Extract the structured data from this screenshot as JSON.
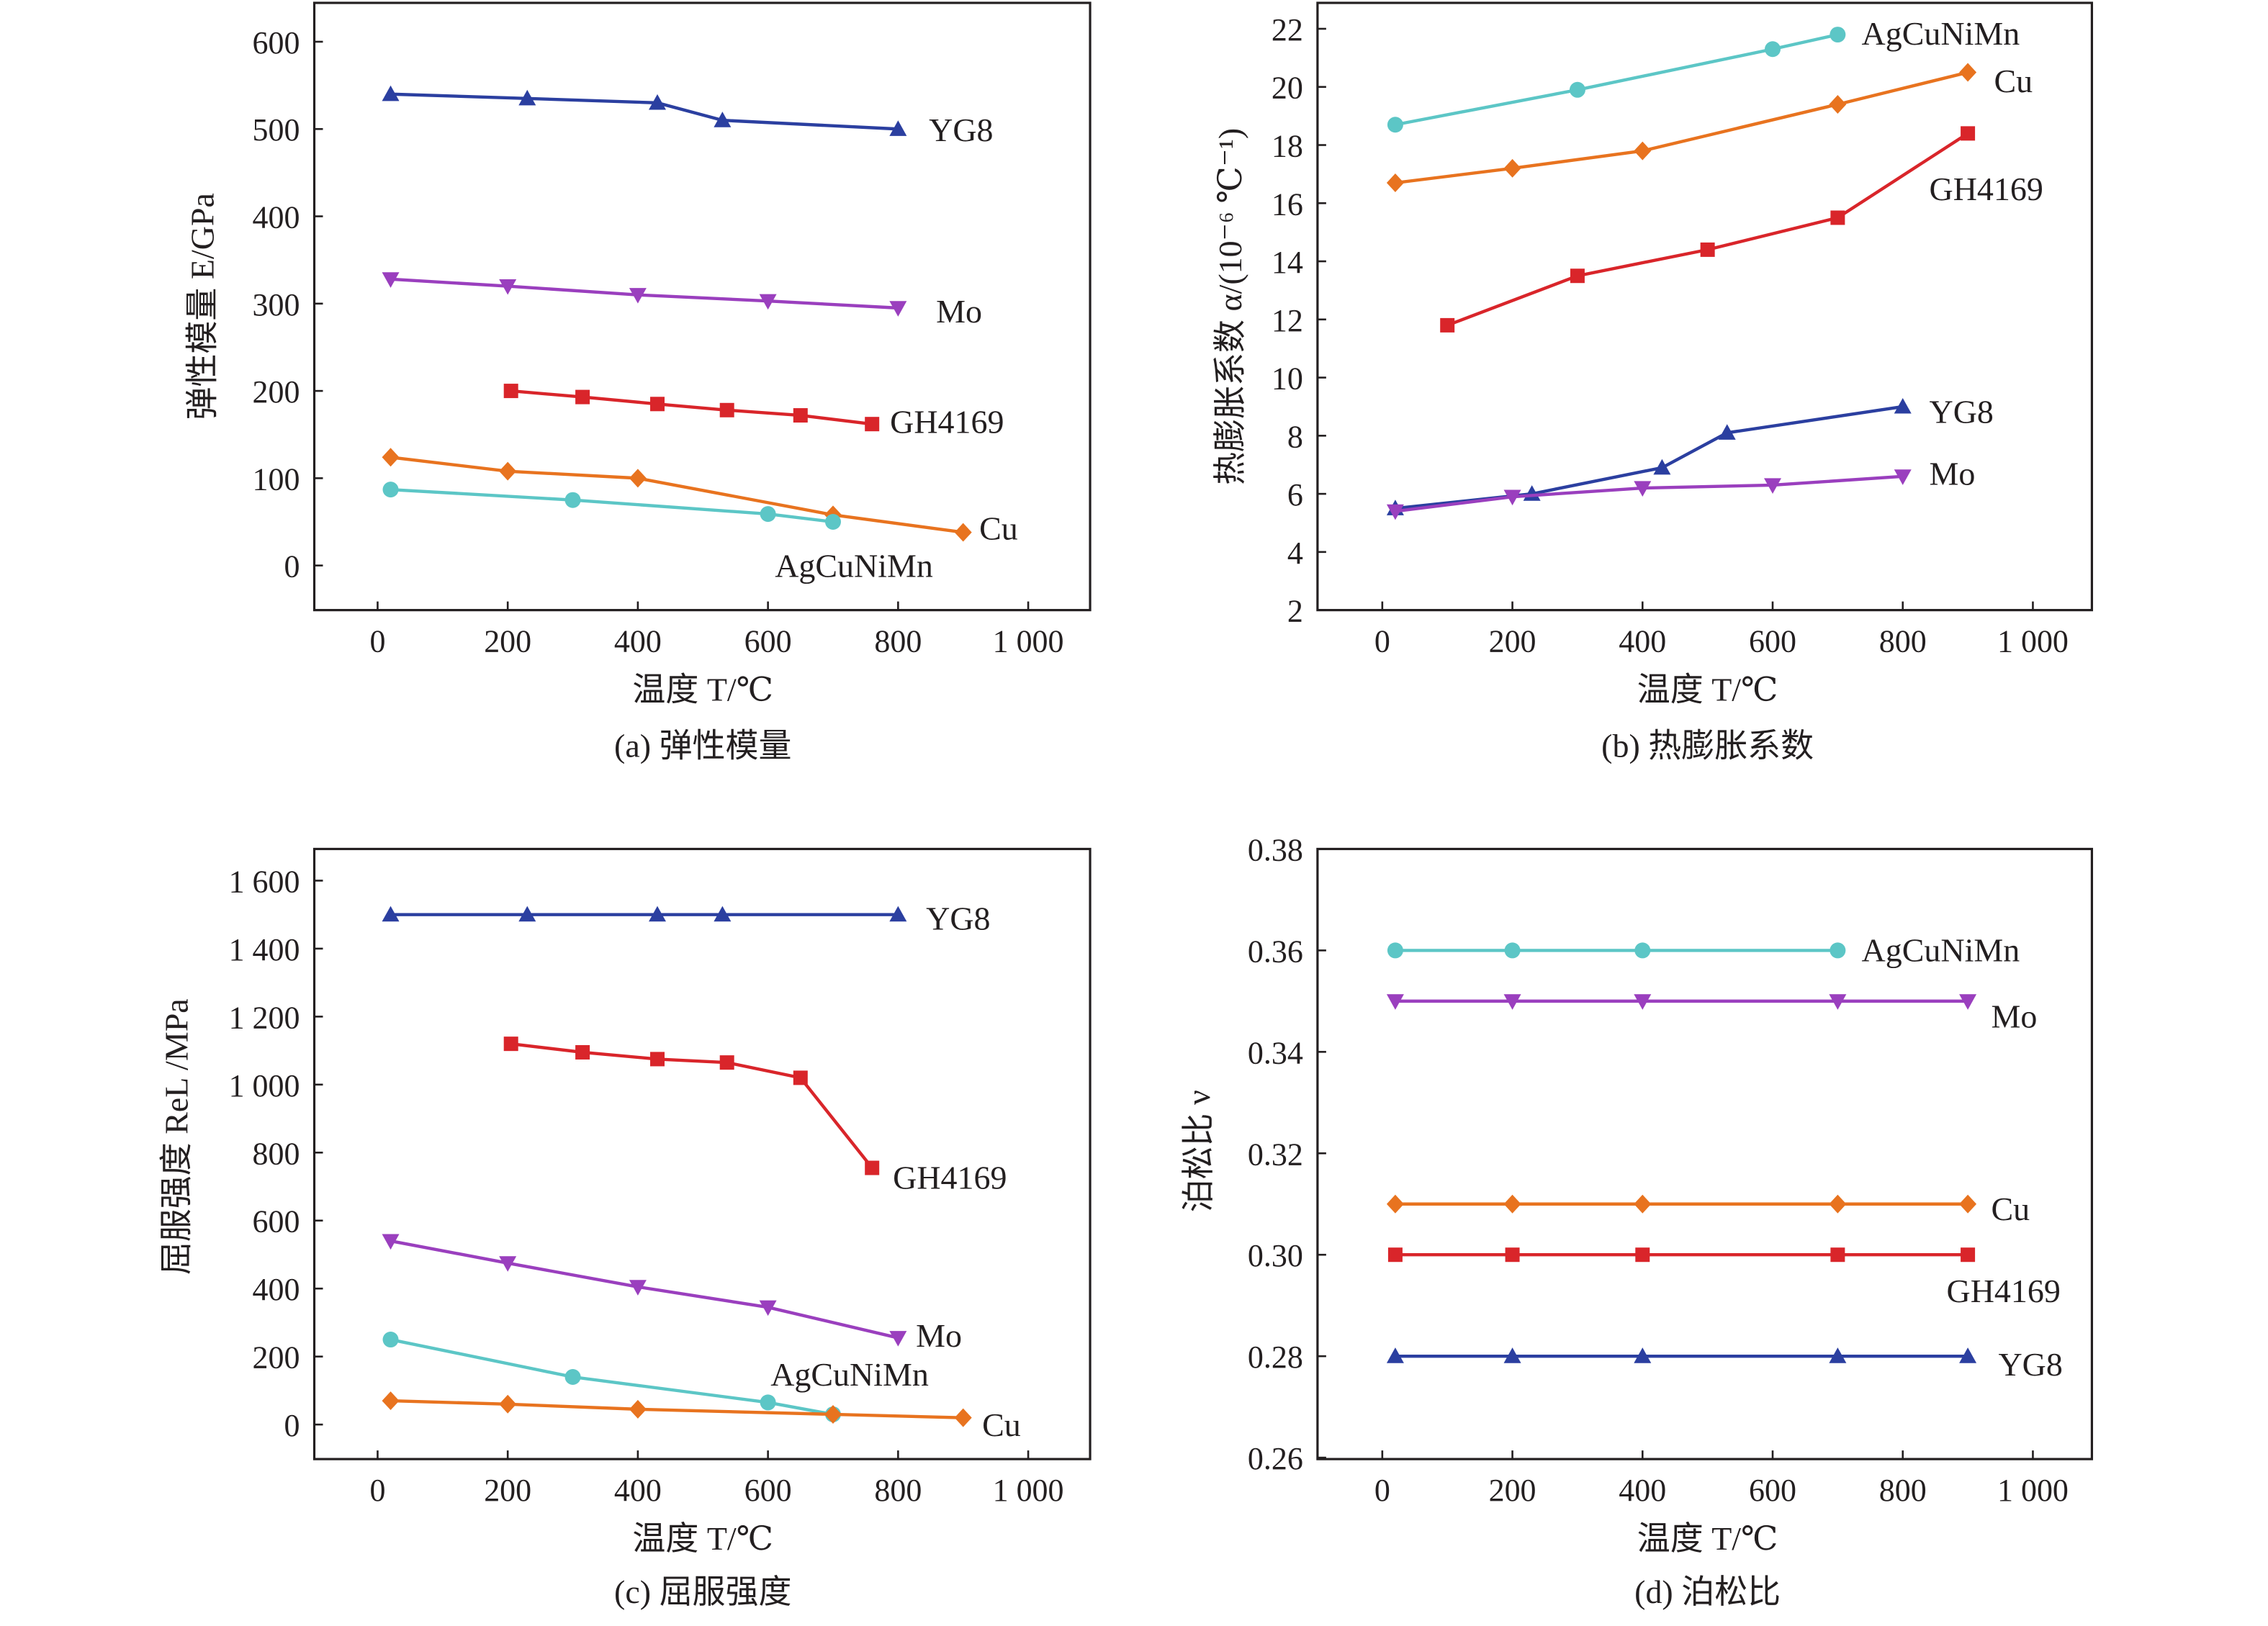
{
  "colors": {
    "YG8": "#2b3fa0",
    "Mo": "#9a3fbe",
    "GH4169": "#d9252a",
    "Cu": "#e8731f",
    "AgCuNiMn": "#5cc6c6"
  },
  "markers": {
    "YG8": "triangle-up",
    "Mo": "triangle-down",
    "GH4169": "square",
    "Cu": "diamond",
    "AgCuNiMn": "circle"
  },
  "chart_data": [
    {
      "type": "line",
      "caption": "(a) 弹性模量",
      "xlabel": "温度 T/℃",
      "ylabel": "弹性模量 E/GPa",
      "xlim": [
        -100,
        1100
      ],
      "ylim": [
        -50,
        650
      ],
      "xticks": [
        0,
        200,
        400,
        600,
        800,
        1000
      ],
      "xtick_labels": [
        "0",
        "200",
        "400",
        "600",
        "800",
        "1 000"
      ],
      "yticks": [
        0,
        100,
        200,
        300,
        400,
        500,
        600
      ],
      "ytick_labels": [
        "0",
        "100",
        "200",
        "300",
        "400",
        "500",
        "600"
      ],
      "series": [
        {
          "name": "YG8",
          "x": [
            20,
            230,
            430,
            530,
            800
          ],
          "y": [
            540,
            535,
            530,
            510,
            500
          ]
        },
        {
          "name": "Mo",
          "x": [
            20,
            200,
            400,
            600,
            800
          ],
          "y": [
            328,
            320,
            310,
            303,
            295
          ]
        },
        {
          "name": "GH4169",
          "x": [
            205,
            315,
            430,
            537,
            650,
            760
          ],
          "y": [
            200,
            193,
            185,
            178,
            172,
            162
          ]
        },
        {
          "name": "Cu",
          "x": [
            20,
            200,
            400,
            700,
            900
          ],
          "y": [
            124,
            108,
            100,
            58,
            38
          ]
        },
        {
          "name": "AgCuNiMn",
          "x": [
            20,
            300,
            600,
            700
          ],
          "y": [
            87,
            75,
            59,
            50
          ]
        }
      ]
    },
    {
      "type": "line",
      "caption": "(b) 热膨胀系数",
      "xlabel": "温度 T/℃",
      "ylabel": "热膨胀系数 α/(10⁻⁶ ℃⁻¹)",
      "xlim": [
        -100,
        1100
      ],
      "ylim": [
        2,
        22
      ],
      "xticks": [
        0,
        200,
        400,
        600,
        800,
        1000
      ],
      "xtick_labels": [
        "0",
        "200",
        "400",
        "600",
        "800",
        "1 000"
      ],
      "yticks": [
        2,
        4,
        6,
        8,
        10,
        12,
        14,
        16,
        18,
        20,
        22
      ],
      "ytick_labels": [
        "2",
        "4",
        "6",
        "8",
        "10",
        "12",
        "14",
        "16",
        "18",
        "20",
        "22"
      ],
      "series": [
        {
          "name": "AgCuNiMn",
          "x": [
            20,
            300,
            600,
            700
          ],
          "y": [
            18.7,
            19.9,
            21.3,
            21.8
          ]
        },
        {
          "name": "Cu",
          "x": [
            20,
            200,
            400,
            700,
            900
          ],
          "y": [
            16.7,
            17.2,
            17.8,
            19.4,
            20.5
          ]
        },
        {
          "name": "GH4169",
          "x": [
            100,
            300,
            500,
            700,
            900
          ],
          "y": [
            11.8,
            13.5,
            14.4,
            15.5,
            18.4
          ]
        },
        {
          "name": "YG8",
          "x": [
            20,
            230,
            430,
            530,
            800
          ],
          "y": [
            5.5,
            6.0,
            6.9,
            8.1,
            9.0
          ]
        },
        {
          "name": "Mo",
          "x": [
            20,
            200,
            400,
            600,
            800
          ],
          "y": [
            5.4,
            5.9,
            6.2,
            6.3,
            6.6
          ]
        }
      ]
    },
    {
      "type": "line",
      "caption": "(c) 屈服强度",
      "xlabel": "温度 T/℃",
      "ylabel": "屈服强度 ReL /MPa",
      "xlim": [
        -100,
        1100
      ],
      "ylim": [
        -100,
        1700
      ],
      "xticks": [
        0,
        200,
        400,
        600,
        800,
        1000
      ],
      "xtick_labels": [
        "0",
        "200",
        "400",
        "600",
        "800",
        "1 000"
      ],
      "yticks": [
        0,
        200,
        400,
        600,
        800,
        1000,
        1200,
        1400,
        1600
      ],
      "ytick_labels": [
        "0",
        "200",
        "400",
        "600",
        "800",
        "1 000",
        "1 200",
        "1 400",
        "1 600"
      ],
      "series": [
        {
          "name": "YG8",
          "x": [
            20,
            230,
            430,
            530,
            800
          ],
          "y": [
            1500,
            1500,
            1500,
            1500,
            1500
          ]
        },
        {
          "name": "GH4169",
          "x": [
            205,
            315,
            430,
            537,
            650,
            760
          ],
          "y": [
            1120,
            1095,
            1075,
            1065,
            1020,
            755
          ]
        },
        {
          "name": "Mo",
          "x": [
            20,
            200,
            400,
            600,
            800
          ],
          "y": [
            540,
            475,
            405,
            345,
            255
          ]
        },
        {
          "name": "AgCuNiMn",
          "x": [
            20,
            300,
            600,
            700
          ],
          "y": [
            250,
            140,
            65,
            30
          ]
        },
        {
          "name": "Cu",
          "x": [
            20,
            200,
            400,
            700,
            900
          ],
          "y": [
            70,
            60,
            45,
            30,
            20
          ]
        }
      ]
    },
    {
      "type": "line",
      "caption": "(d) 泊松比",
      "xlabel": "温度 T/℃",
      "ylabel": "泊松比 ν",
      "xlim": [
        -100,
        1100
      ],
      "ylim": [
        0.26,
        0.38
      ],
      "xticks": [
        0,
        200,
        400,
        600,
        800,
        1000
      ],
      "xtick_labels": [
        "0",
        "200",
        "400",
        "600",
        "800",
        "1 000"
      ],
      "yticks": [
        0.26,
        0.28,
        0.3,
        0.32,
        0.34,
        0.36,
        0.38
      ],
      "ytick_labels": [
        "0.26",
        "0.28",
        "0.30",
        "0.32",
        "0.34",
        "0.36",
        "0.38"
      ],
      "series": [
        {
          "name": "AgCuNiMn",
          "x": [
            20,
            200,
            400,
            700
          ],
          "y": [
            0.36,
            0.36,
            0.36,
            0.36
          ]
        },
        {
          "name": "Mo",
          "x": [
            20,
            200,
            400,
            700,
            900
          ],
          "y": [
            0.35,
            0.35,
            0.35,
            0.35,
            0.35
          ]
        },
        {
          "name": "Cu",
          "x": [
            20,
            200,
            400,
            700,
            900
          ],
          "y": [
            0.31,
            0.31,
            0.31,
            0.31,
            0.31
          ]
        },
        {
          "name": "GH4169",
          "x": [
            20,
            200,
            400,
            700,
            900
          ],
          "y": [
            0.3,
            0.3,
            0.3,
            0.3,
            0.3
          ]
        },
        {
          "name": "YG8",
          "x": [
            20,
            200,
            400,
            700,
            900
          ],
          "y": [
            0.28,
            0.28,
            0.28,
            0.28,
            0.28
          ]
        }
      ]
    }
  ]
}
